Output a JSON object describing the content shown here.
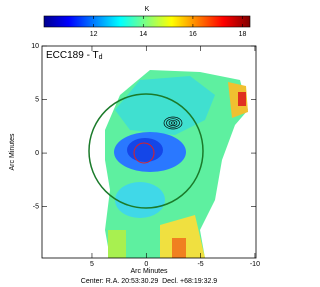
{
  "colorbar": {
    "label": "K",
    "lim": [
      10,
      18.3
    ],
    "ticks": [
      12,
      14,
      16,
      18
    ]
  },
  "plot": {
    "title": "ECC189 - T",
    "title_sub": "d",
    "xlabel": "Arc Minutes",
    "ylabel": "Arc Minutes",
    "xlim": [
      9.6,
      -10.1
    ],
    "ylim": [
      -9.8,
      10
    ],
    "xticks": [
      5,
      0,
      -5,
      -10
    ],
    "yticks": [
      10,
      5,
      0,
      -5
    ]
  },
  "footer": "Center: R.A. 20:53:30.29  Decl. +68:19:32.9"
}
